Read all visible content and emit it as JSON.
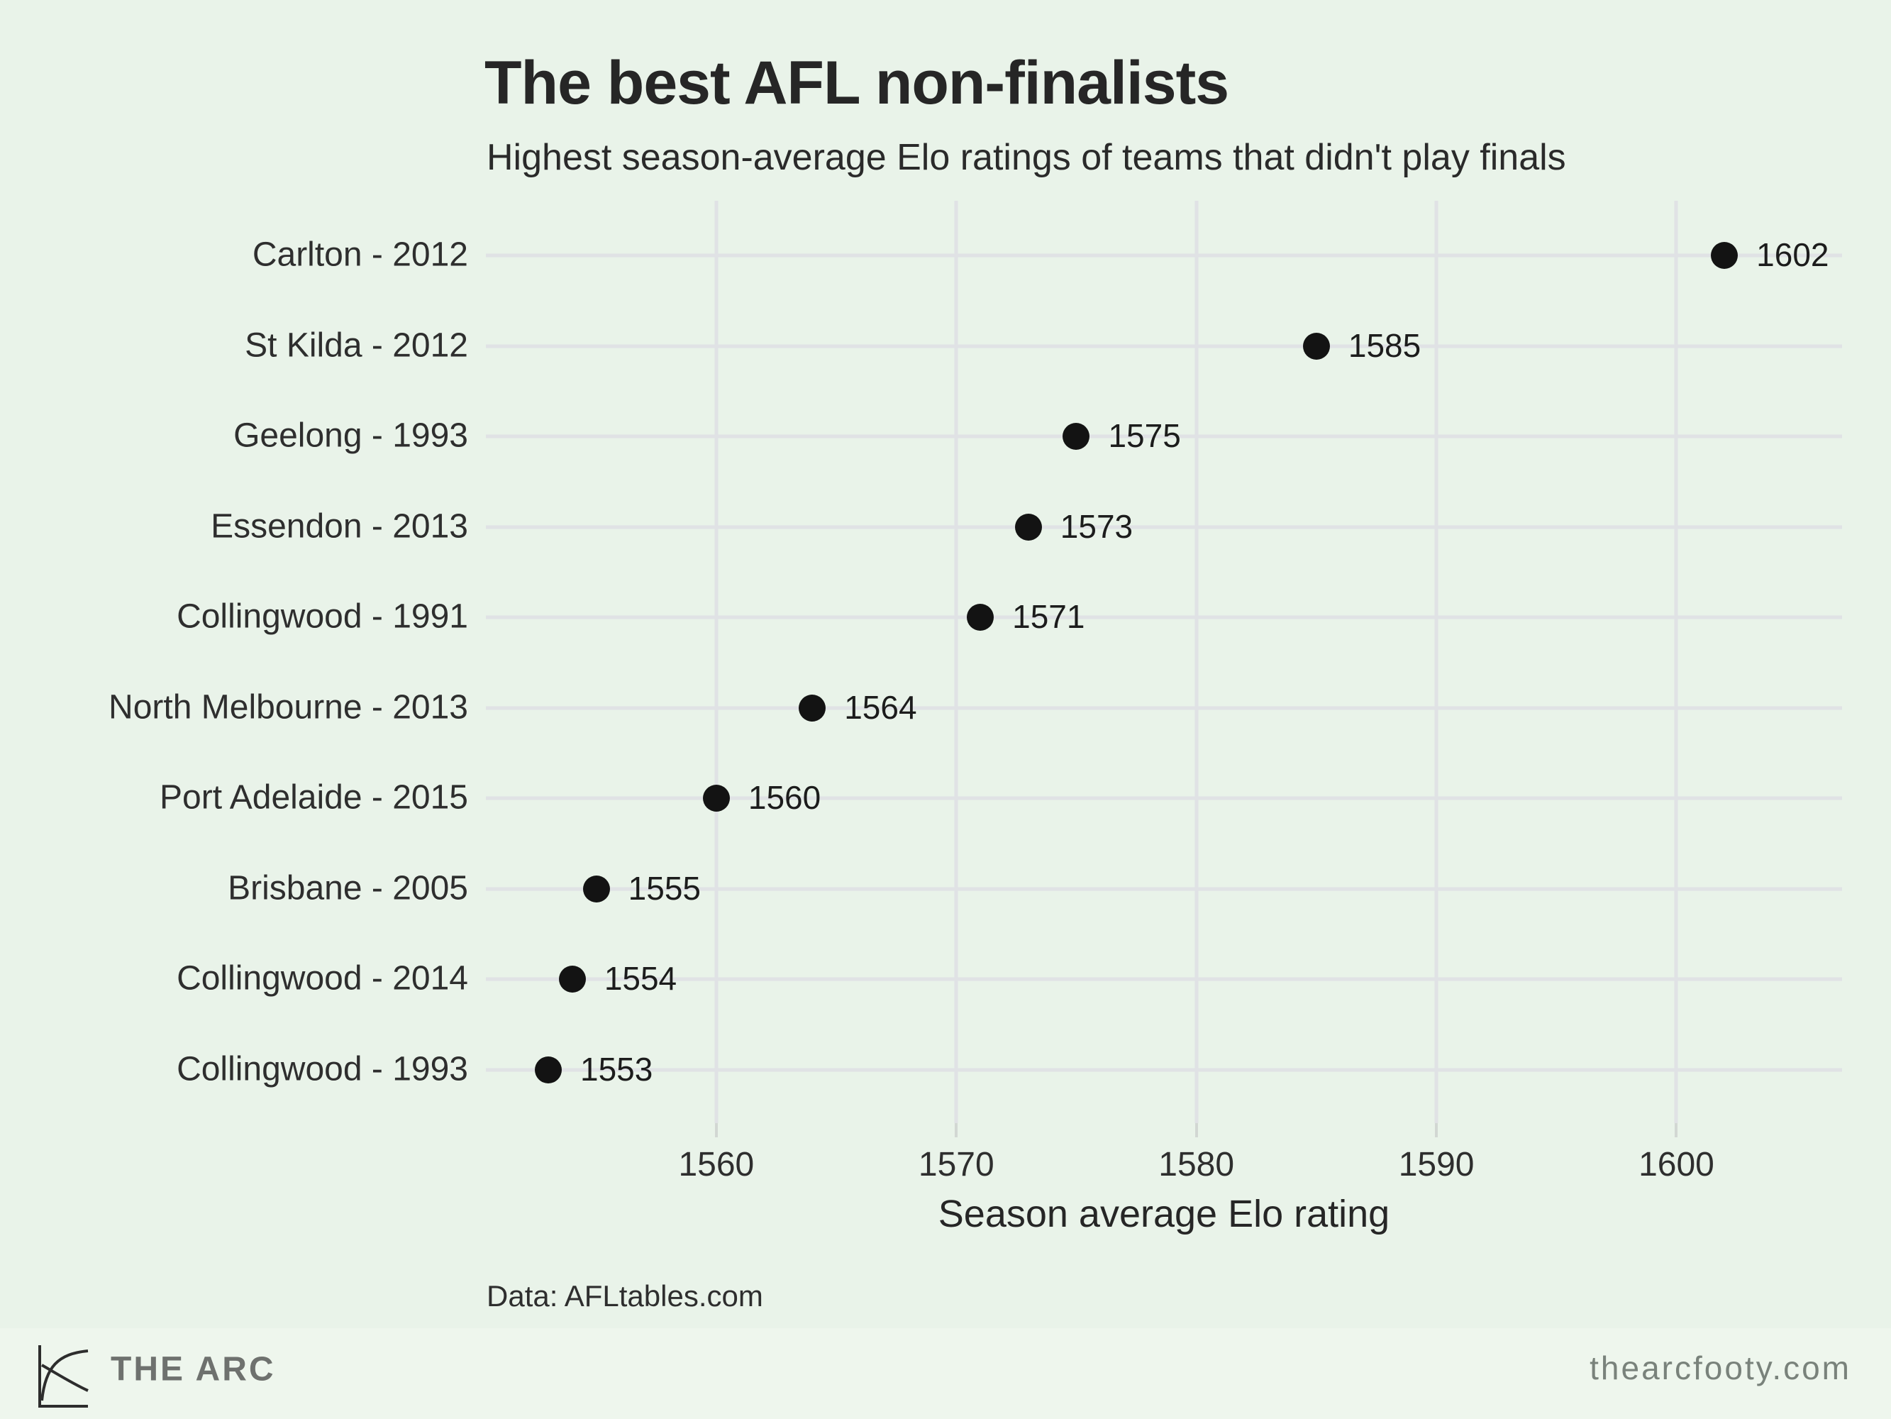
{
  "header": {
    "title": "The best AFL non-finalists",
    "subtitle": "Highest season-average Elo ratings of teams that didn't play finals"
  },
  "chart_data": {
    "type": "scatter",
    "variant": "horizontal-dot-plot",
    "categories": [
      "Carlton - 2012",
      "St Kilda - 2012",
      "Geelong - 1993",
      "Essendon - 2013",
      "Collingwood - 1991",
      "North Melbourne - 2013",
      "Port Adelaide - 2015",
      "Brisbane - 2005",
      "Collingwood - 2014",
      "Collingwood - 1993"
    ],
    "values": [
      1602,
      1585,
      1575,
      1573,
      1571,
      1564,
      1560,
      1555,
      1554,
      1553
    ],
    "point_labels": [
      "1602",
      "1585",
      "1575",
      "1573",
      "1571",
      "1564",
      "1560",
      "1555",
      "1554",
      "1553"
    ],
    "title": "The best AFL non-finalists",
    "subtitle": "Highest season-average Elo ratings of teams that didn't play finals",
    "xlabel": "Season average Elo rating",
    "ylabel": "",
    "x_ticks": [
      1560,
      1570,
      1580,
      1590,
      1600
    ],
    "xlim": [
      1550.4,
      1606.9
    ],
    "grid": "both",
    "legend": "none"
  },
  "source_note": "Data: AFLtables.com",
  "footer": {
    "brand": "THE ARC",
    "website": "thearcfooty.com"
  },
  "icons": {
    "logo": "arc-line-chart-icon"
  },
  "colors": {
    "background": "#e9f3e9",
    "footer_background": "#eef6ed",
    "gridline": "#e0e2e5",
    "point": "#131313",
    "heading_text": "#262626",
    "label_text": "#2e2e2e",
    "muted_text": "#6e716e",
    "url_text": "#79827b"
  }
}
